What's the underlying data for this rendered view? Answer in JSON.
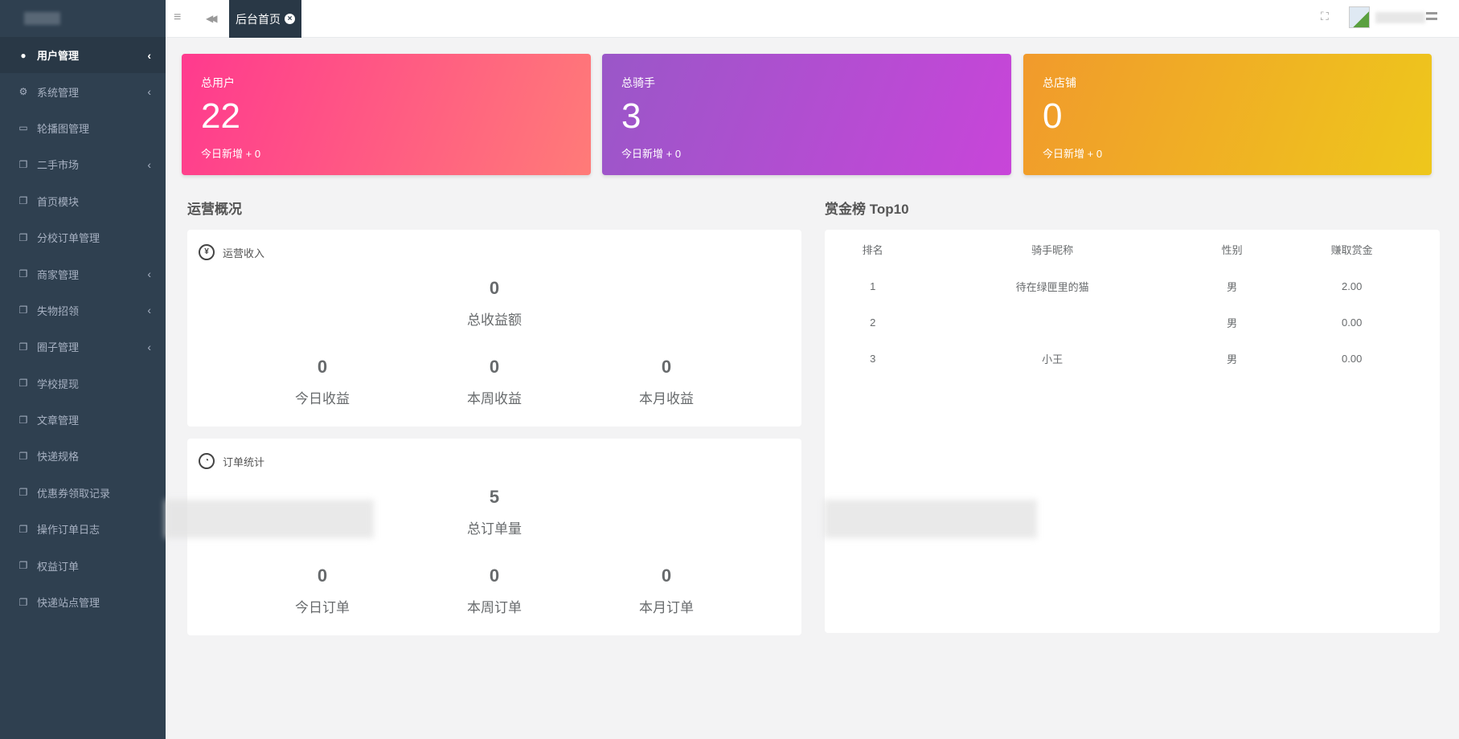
{
  "sidebar": {
    "items": [
      {
        "label": "用户管理",
        "icon": "user-icon",
        "chevron": "‹",
        "active": true
      },
      {
        "label": "系统管理",
        "icon": "gears-icon",
        "chevron": "‹"
      },
      {
        "label": "轮播图管理",
        "icon": "desktop-icon"
      },
      {
        "label": "二手市场",
        "icon": "copy-icon",
        "chevron": "‹"
      },
      {
        "label": "首页模块",
        "icon": "copy-icon"
      },
      {
        "label": "分校订单管理",
        "icon": "copy-icon"
      },
      {
        "label": "商家管理",
        "icon": "copy-icon",
        "chevron": "‹"
      },
      {
        "label": "失物招领",
        "icon": "copy-icon",
        "chevron": "‹"
      },
      {
        "label": "圈子管理",
        "icon": "copy-icon",
        "chevron": "‹"
      },
      {
        "label": "学校提现",
        "icon": "copy-icon"
      },
      {
        "label": "文章管理",
        "icon": "copy-icon"
      },
      {
        "label": "快递规格",
        "icon": "copy-icon"
      },
      {
        "label": "优惠券领取记录",
        "icon": "copy-icon"
      },
      {
        "label": "操作订单日志",
        "icon": "copy-icon"
      },
      {
        "label": "权益订单",
        "icon": "copy-icon"
      },
      {
        "label": "快递站点管理",
        "icon": "copy-icon"
      }
    ]
  },
  "topbar": {
    "menu_icon": "≡",
    "back_icon": "◀◀",
    "tab_label": "后台首页",
    "tab_close": "×",
    "fullscreen_icon": "⛶"
  },
  "cards": [
    {
      "label": "总用户",
      "value": "22",
      "sub": "今日新增 + 0",
      "colors": [
        "#ff3a8e",
        "#ff7b78"
      ]
    },
    {
      "label": "总骑手",
      "value": "3",
      "sub": "今日新增 + 0",
      "colors": [
        "#9a57c8",
        "#c845d9"
      ]
    },
    {
      "label": "总店铺",
      "value": "0",
      "sub": "今日新增 + 0",
      "colors": [
        "#f19a2c",
        "#eec71c"
      ]
    }
  ],
  "operations": {
    "title": "运营概况",
    "income": {
      "title": "运营收入",
      "total_value": "0",
      "total_label": "总收益额",
      "stats": [
        {
          "value": "0",
          "label": "今日收益"
        },
        {
          "value": "0",
          "label": "本周收益"
        },
        {
          "value": "0",
          "label": "本月收益"
        }
      ]
    },
    "orders": {
      "title": "订单统计",
      "total_value": "5",
      "total_label": "总订单量",
      "stats": [
        {
          "value": "0",
          "label": "今日订单"
        },
        {
          "value": "0",
          "label": "本周订单"
        },
        {
          "value": "0",
          "label": "本月订单"
        }
      ]
    }
  },
  "leaderboard": {
    "title": "赏金榜 Top10",
    "headers": [
      "排名",
      "骑手昵称",
      "性别",
      "赚取赏金"
    ],
    "rows": [
      [
        "1",
        "待在绿匣里的猫",
        "男",
        "2.00"
      ],
      [
        "2",
        "",
        "男",
        "0.00"
      ],
      [
        "3",
        "小王",
        "男",
        "0.00"
      ]
    ]
  }
}
